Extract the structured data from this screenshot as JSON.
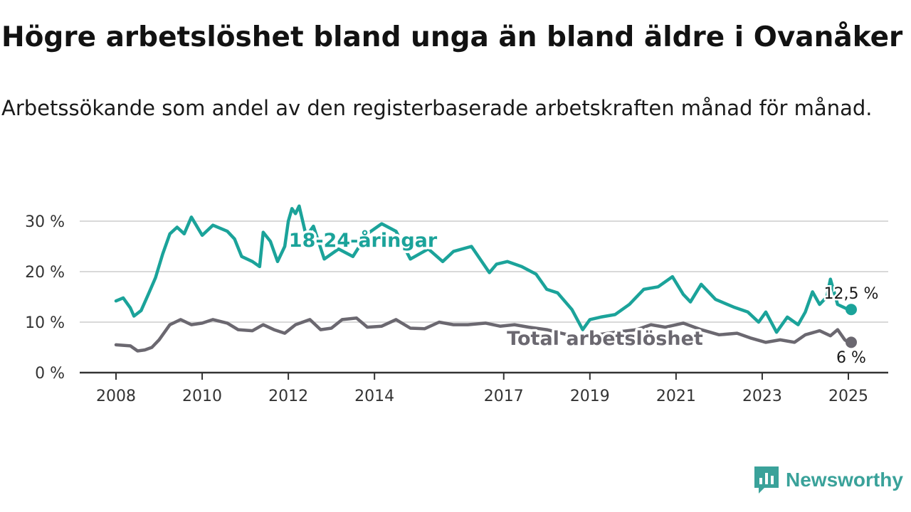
{
  "header": {
    "title": "Högre arbetslöshet bland unga än bland äldre i Ovanåker",
    "subtitle": "Arbetssökande som andel av den registerbaserade arbetskraften månad för månad."
  },
  "brand": {
    "name": "Newsworthy",
    "icon": "newsworthy-logo-icon"
  },
  "chart_data": {
    "type": "line",
    "title": "Högre arbetslöshet bland unga än bland äldre i Ovanåker",
    "subtitle": "Arbetssökande som andel av den registerbaserade arbetskraften månad för månad.",
    "ylim": [
      0,
      30
    ],
    "xlim": [
      2008,
      2025
    ],
    "y_ticks": [
      0,
      10,
      20,
      30
    ],
    "y_tick_labels": [
      "0 %",
      "10 %",
      "20 %",
      "30 %"
    ],
    "x_ticks": [
      2008,
      2010,
      2012,
      2014,
      2017,
      2019,
      2021,
      2023,
      2025
    ],
    "x_tick_labels": [
      "2008",
      "2010",
      "2012",
      "2014",
      "2017",
      "2019",
      "2021",
      "2023",
      "2025"
    ],
    "grid": true,
    "legend": "direct labels",
    "series": [
      {
        "name": "18-24-åringar",
        "color": "#1ba39a",
        "end_label": "12,5 %",
        "points": [
          [
            "2008-01",
            14.2
          ],
          [
            "2008-03",
            14.8
          ],
          [
            "2008-05",
            12.8
          ],
          [
            "2008-06",
            11.2
          ],
          [
            "2008-08",
            12.3
          ],
          [
            "2008-10",
            15.5
          ],
          [
            "2008-12",
            18.8
          ],
          [
            "2009-02",
            23.5
          ],
          [
            "2009-04",
            27.5
          ],
          [
            "2009-06",
            28.8
          ],
          [
            "2009-08",
            27.5
          ],
          [
            "2009-10",
            30.8
          ],
          [
            "2010-01",
            27.2
          ],
          [
            "2010-04",
            29.2
          ],
          [
            "2010-08",
            28.0
          ],
          [
            "2010-10",
            26.5
          ],
          [
            "2010-12",
            23.0
          ],
          [
            "2011-03",
            22.0
          ],
          [
            "2011-05",
            21.0
          ],
          [
            "2011-06",
            27.8
          ],
          [
            "2011-08",
            26.0
          ],
          [
            "2011-10",
            22.0
          ],
          [
            "2011-12",
            25.0
          ],
          [
            "2012-01",
            30.0
          ],
          [
            "2012-02",
            32.5
          ],
          [
            "2012-03",
            31.5
          ],
          [
            "2012-04",
            33.0
          ],
          [
            "2012-06",
            27.0
          ],
          [
            "2012-08",
            29.0
          ],
          [
            "2012-11",
            22.5
          ],
          [
            "2013-03",
            24.5
          ],
          [
            "2013-07",
            23.0
          ],
          [
            "2013-11",
            27.5
          ],
          [
            "2014-03",
            29.5
          ],
          [
            "2014-07",
            28.0
          ],
          [
            "2014-11",
            22.5
          ],
          [
            "2015-04",
            24.5
          ],
          [
            "2015-08",
            22.0
          ],
          [
            "2015-11",
            24.0
          ],
          [
            "2016-04",
            25.0
          ],
          [
            "2016-09",
            19.8
          ],
          [
            "2016-11",
            21.5
          ],
          [
            "2017-02",
            22.0
          ],
          [
            "2017-06",
            21.0
          ],
          [
            "2017-10",
            19.5
          ],
          [
            "2018-01",
            16.5
          ],
          [
            "2018-04",
            15.8
          ],
          [
            "2018-08",
            12.5
          ],
          [
            "2018-11",
            8.5
          ],
          [
            "2019-01",
            10.5
          ],
          [
            "2019-04",
            11.0
          ],
          [
            "2019-08",
            11.5
          ],
          [
            "2019-12",
            13.5
          ],
          [
            "2020-04",
            16.5
          ],
          [
            "2020-08",
            17.0
          ],
          [
            "2020-12",
            19.0
          ],
          [
            "2021-03",
            15.5
          ],
          [
            "2021-05",
            14.0
          ],
          [
            "2021-08",
            17.5
          ],
          [
            "2021-12",
            14.5
          ],
          [
            "2022-05",
            13.0
          ],
          [
            "2022-09",
            12.0
          ],
          [
            "2022-12",
            10.0
          ],
          [
            "2023-02",
            12.0
          ],
          [
            "2023-05",
            8.0
          ],
          [
            "2023-08",
            11.0
          ],
          [
            "2023-11",
            9.5
          ],
          [
            "2024-01",
            12.0
          ],
          [
            "2024-03",
            16.0
          ],
          [
            "2024-05",
            13.5
          ],
          [
            "2024-07",
            15.0
          ],
          [
            "2024-08",
            18.5
          ],
          [
            "2024-10",
            13.5
          ],
          [
            "2025-01",
            12.5
          ]
        ]
      },
      {
        "name": "Total arbetslöshet",
        "color": "#6b6870",
        "end_label": "6 %",
        "points": [
          [
            "2008-01",
            5.5
          ],
          [
            "2008-05",
            5.3
          ],
          [
            "2008-07",
            4.3
          ],
          [
            "2008-09",
            4.5
          ],
          [
            "2008-11",
            5.0
          ],
          [
            "2009-01",
            6.5
          ],
          [
            "2009-04",
            9.5
          ],
          [
            "2009-07",
            10.5
          ],
          [
            "2009-10",
            9.5
          ],
          [
            "2010-01",
            9.8
          ],
          [
            "2010-04",
            10.5
          ],
          [
            "2010-08",
            9.8
          ],
          [
            "2010-11",
            8.5
          ],
          [
            "2011-03",
            8.3
          ],
          [
            "2011-06",
            9.5
          ],
          [
            "2011-09",
            8.5
          ],
          [
            "2011-12",
            7.8
          ],
          [
            "2012-03",
            9.5
          ],
          [
            "2012-07",
            10.5
          ],
          [
            "2012-10",
            8.5
          ],
          [
            "2013-01",
            8.8
          ],
          [
            "2013-04",
            10.5
          ],
          [
            "2013-08",
            10.8
          ],
          [
            "2013-11",
            9.0
          ],
          [
            "2014-03",
            9.2
          ],
          [
            "2014-07",
            10.5
          ],
          [
            "2014-11",
            8.8
          ],
          [
            "2015-03",
            8.7
          ],
          [
            "2015-07",
            10.0
          ],
          [
            "2015-11",
            9.5
          ],
          [
            "2016-03",
            9.5
          ],
          [
            "2016-08",
            9.8
          ],
          [
            "2016-12",
            9.2
          ],
          [
            "2017-04",
            9.5
          ],
          [
            "2017-08",
            9.0
          ],
          [
            "2018-01",
            8.5
          ],
          [
            "2018-05",
            7.8
          ],
          [
            "2018-10",
            7.0
          ],
          [
            "2019-03",
            7.5
          ],
          [
            "2019-08",
            8.0
          ],
          [
            "2020-02",
            8.5
          ],
          [
            "2020-06",
            9.5
          ],
          [
            "2020-10",
            9.0
          ],
          [
            "2021-03",
            9.8
          ],
          [
            "2021-08",
            8.5
          ],
          [
            "2022-01",
            7.5
          ],
          [
            "2022-06",
            7.8
          ],
          [
            "2022-10",
            6.8
          ],
          [
            "2023-02",
            6.0
          ],
          [
            "2023-06",
            6.5
          ],
          [
            "2023-10",
            6.0
          ],
          [
            "2024-01",
            7.5
          ],
          [
            "2024-05",
            8.3
          ],
          [
            "2024-08",
            7.3
          ],
          [
            "2024-10",
            8.5
          ],
          [
            "2024-12",
            6.5
          ],
          [
            "2025-01",
            6.0
          ]
        ]
      }
    ]
  }
}
